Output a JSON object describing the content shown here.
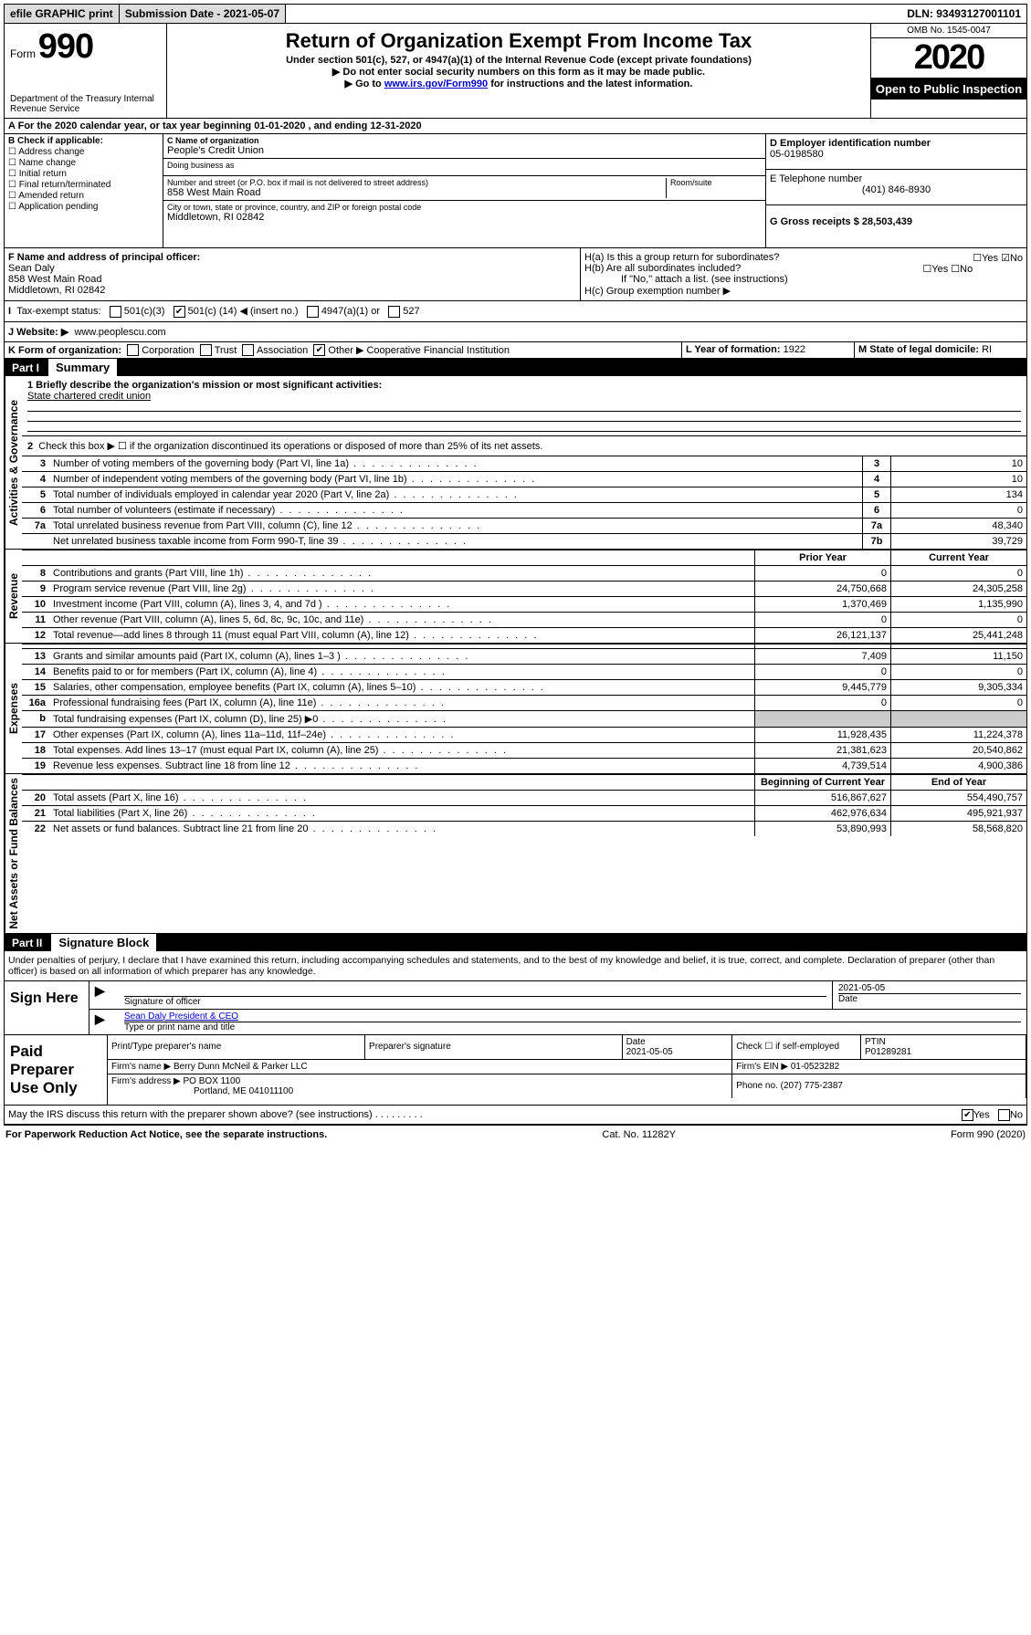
{
  "topbar": {
    "efile": "efile GRAPHIC print",
    "submission": "Submission Date - 2021-05-07",
    "dln": "DLN: 93493127001101"
  },
  "header": {
    "form_word": "Form",
    "form_no": "990",
    "dept": "Department of the Treasury\nInternal Revenue Service",
    "title": "Return of Organization Exempt From Income Tax",
    "sub1": "Under section 501(c), 527, or 4947(a)(1) of the Internal Revenue Code (except private foundations)",
    "sub2": "▶ Do not enter social security numbers on this form as it may be made public.",
    "sub3_pre": "▶ Go to ",
    "sub3_link": "www.irs.gov/Form990",
    "sub3_post": " for instructions and the latest information.",
    "omb": "OMB No. 1545-0047",
    "year": "2020",
    "open": "Open to Public Inspection"
  },
  "lineA": "For the 2020 calendar year, or tax year beginning 01-01-2020    , and ending 12-31-2020",
  "blockB": {
    "label": "B Check if applicable:",
    "opts": [
      "Address change",
      "Name change",
      "Initial return",
      "Final return/terminated",
      "Amended return",
      "Application pending"
    ]
  },
  "blockC": {
    "name_label": "C Name of organization",
    "name": "People's Credit Union",
    "dba_label": "Doing business as",
    "dba": "",
    "addr_label": "Number and street (or P.O. box if mail is not delivered to street address)",
    "room_label": "Room/suite",
    "addr": "858 West Main Road",
    "city_label": "City or town, state or province, country, and ZIP or foreign postal code",
    "city": "Middletown, RI  02842"
  },
  "blockD": {
    "label": "D Employer identification number",
    "value": "05-0198580"
  },
  "blockE": {
    "label": "E Telephone number",
    "value": "(401) 846-8930"
  },
  "blockG": {
    "label": "G Gross receipts $ 28,503,439"
  },
  "blockF": {
    "label": "F  Name and address of principal officer:",
    "name": "Sean Daly",
    "addr1": "858 West Main Road",
    "addr2": "Middletown, RI  02842"
  },
  "blockH": {
    "a": "H(a)  Is this a group return for subordinates?",
    "b": "H(b)  Are all subordinates included?",
    "b_note": "If \"No,\" attach a list. (see instructions)",
    "c": "H(c)  Group exemption number ▶",
    "yes": "Yes",
    "no": "No"
  },
  "taxExempt": {
    "label": "Tax-exempt status:",
    "opt1": "501(c)(3)",
    "opt2_pre": "501(c) (",
    "opt2_num": "14",
    "opt2_post": ") ◀ (insert no.)",
    "opt3": "4947(a)(1) or",
    "opt4": "527"
  },
  "lineJ": {
    "label": "J  Website: ▶",
    "value": "www.peoplescu.com"
  },
  "lineK": {
    "label": "K Form of organization:",
    "opts": [
      "Corporation",
      "Trust",
      "Association",
      "Other ▶"
    ],
    "other": "Cooperative Financial Institution"
  },
  "lineL": {
    "label": "L Year of formation:",
    "value": "1922"
  },
  "lineM": {
    "label": "M State of legal domicile:",
    "value": "RI"
  },
  "part1": {
    "label": "Part I",
    "title": "Summary"
  },
  "summary": {
    "q1": "1 Briefly describe the organization's mission or most significant activities:",
    "a1": "State chartered credit union",
    "q2": "Check this box ▶ ☐ if the organization discontinued its operations or disposed of more than 25% of its net assets."
  },
  "sideLabels": {
    "gov": "Activities & Governance",
    "rev": "Revenue",
    "exp": "Expenses",
    "net": "Net Assets or Fund Balances"
  },
  "govLines": [
    {
      "n": "3",
      "d": "Number of voting members of the governing body (Part VI, line 1a)",
      "ln": "3",
      "v": "10"
    },
    {
      "n": "4",
      "d": "Number of independent voting members of the governing body (Part VI, line 1b)",
      "ln": "4",
      "v": "10"
    },
    {
      "n": "5",
      "d": "Total number of individuals employed in calendar year 2020 (Part V, line 2a)",
      "ln": "5",
      "v": "134"
    },
    {
      "n": "6",
      "d": "Total number of volunteers (estimate if necessary)",
      "ln": "6",
      "v": "0"
    },
    {
      "n": "7a",
      "d": "Total unrelated business revenue from Part VIII, column (C), line 12",
      "ln": "7a",
      "v": "48,340"
    },
    {
      "n": "",
      "d": "Net unrelated business taxable income from Form 990-T, line 39",
      "ln": "7b",
      "v": "39,729"
    }
  ],
  "colHead": {
    "prior": "Prior Year",
    "current": "Current Year",
    "boy": "Beginning of Current Year",
    "eoy": "End of Year"
  },
  "revLines": [
    {
      "n": "8",
      "d": "Contributions and grants (Part VIII, line 1h)",
      "p": "0",
      "c": "0"
    },
    {
      "n": "9",
      "d": "Program service revenue (Part VIII, line 2g)",
      "p": "24,750,668",
      "c": "24,305,258"
    },
    {
      "n": "10",
      "d": "Investment income (Part VIII, column (A), lines 3, 4, and 7d )",
      "p": "1,370,469",
      "c": "1,135,990"
    },
    {
      "n": "11",
      "d": "Other revenue (Part VIII, column (A), lines 5, 6d, 8c, 9c, 10c, and 11e)",
      "p": "0",
      "c": "0"
    },
    {
      "n": "12",
      "d": "Total revenue—add lines 8 through 11 (must equal Part VIII, column (A), line 12)",
      "p": "26,121,137",
      "c": "25,441,248"
    }
  ],
  "expLines": [
    {
      "n": "13",
      "d": "Grants and similar amounts paid (Part IX, column (A), lines 1–3 )",
      "p": "7,409",
      "c": "11,150"
    },
    {
      "n": "14",
      "d": "Benefits paid to or for members (Part IX, column (A), line 4)",
      "p": "0",
      "c": "0"
    },
    {
      "n": "15",
      "d": "Salaries, other compensation, employee benefits (Part IX, column (A), lines 5–10)",
      "p": "9,445,779",
      "c": "9,305,334"
    },
    {
      "n": "16a",
      "d": "Professional fundraising fees (Part IX, column (A), line 11e)",
      "p": "0",
      "c": "0"
    },
    {
      "n": "b",
      "d": "Total fundraising expenses (Part IX, column (D), line 25) ▶0",
      "p": "",
      "c": "",
      "grey": true
    },
    {
      "n": "17",
      "d": "Other expenses (Part IX, column (A), lines 11a–11d, 11f–24e)",
      "p": "11,928,435",
      "c": "11,224,378"
    },
    {
      "n": "18",
      "d": "Total expenses. Add lines 13–17 (must equal Part IX, column (A), line 25)",
      "p": "21,381,623",
      "c": "20,540,862"
    },
    {
      "n": "19",
      "d": "Revenue less expenses. Subtract line 18 from line 12",
      "p": "4,739,514",
      "c": "4,900,386"
    }
  ],
  "netLines": [
    {
      "n": "20",
      "d": "Total assets (Part X, line 16)",
      "p": "516,867,627",
      "c": "554,490,757"
    },
    {
      "n": "21",
      "d": "Total liabilities (Part X, line 26)",
      "p": "462,976,634",
      "c": "495,921,937"
    },
    {
      "n": "22",
      "d": "Net assets or fund balances. Subtract line 21 from line 20",
      "p": "53,890,993",
      "c": "58,568,820"
    }
  ],
  "part2": {
    "label": "Part II",
    "title": "Signature Block"
  },
  "penalties": "Under penalties of perjury, I declare that I have examined this return, including accompanying schedules and statements, and to the best of my knowledge and belief, it is true, correct, and complete. Declaration of preparer (other than officer) is based on all information of which preparer has any knowledge.",
  "sign": {
    "here": "Sign Here",
    "sig_label": "Signature of officer",
    "date": "2021-05-05",
    "date_label": "Date",
    "name": "Sean Daly  President & CEO",
    "name_label": "Type or print name and title"
  },
  "prep": {
    "here": "Paid Preparer Use Only",
    "h1": "Print/Type preparer's name",
    "h2": "Preparer's signature",
    "h3": "Date",
    "date": "2021-05-05",
    "h4": "Check ☐ if self-employed",
    "h5": "PTIN",
    "ptin": "P01289281",
    "firm_label": "Firm's name     ▶",
    "firm": "Berry Dunn McNeil & Parker LLC",
    "ein_label": "Firm's EIN ▶",
    "ein": "01-0523282",
    "addr_label": "Firm's address ▶",
    "addr1": "PO BOX 1100",
    "addr2": "Portland, ME  041011100",
    "phone_label": "Phone no.",
    "phone": "(207) 775-2387"
  },
  "discuss": {
    "q": "May the IRS discuss this return with the preparer shown above? (see instructions)",
    "yes": "Yes",
    "no": "No"
  },
  "footer": {
    "left": "For Paperwork Reduction Act Notice, see the separate instructions.",
    "mid": "Cat. No. 11282Y",
    "right": "Form 990 (2020)"
  }
}
